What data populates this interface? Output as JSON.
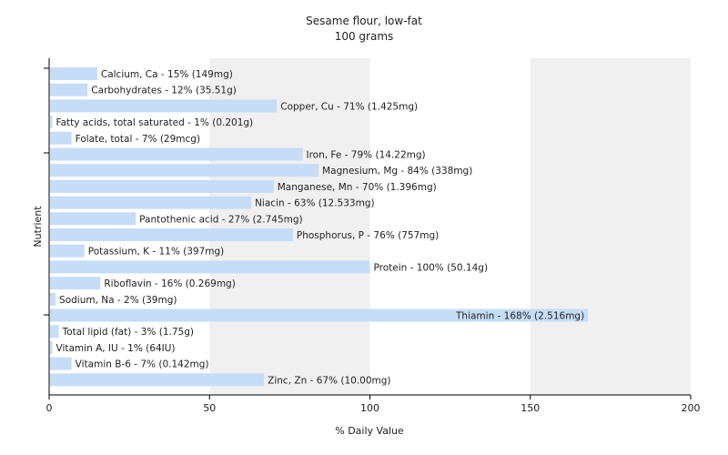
{
  "chart_data": {
    "type": "bar",
    "orientation": "horizontal",
    "title": "Sesame flour, low-fat",
    "subtitle": "100 grams",
    "xlabel": "% Daily Value",
    "ylabel": "Nutrient",
    "xlim": [
      0,
      200
    ],
    "xticks": [
      0,
      50,
      100,
      150,
      200
    ],
    "grid": "vertical-bands",
    "legend": "none",
    "bar_color": "#c6ddf7",
    "band_color": "#f0f0f0",
    "categories": [
      "Calcium, Ca",
      "Carbohydrates",
      "Copper, Cu",
      "Fatty acids, total saturated",
      "Folate, total",
      "Iron, Fe",
      "Magnesium, Mg",
      "Manganese, Mn",
      "Niacin",
      "Pantothenic acid",
      "Phosphorus, P",
      "Potassium, K",
      "Protein",
      "Riboflavin",
      "Sodium, Na",
      "Thiamin",
      "Total lipid (fat)",
      "Vitamin A, IU",
      "Vitamin B-6",
      "Zinc, Zn"
    ],
    "values": [
      15,
      12,
      71,
      1,
      7,
      79,
      84,
      70,
      63,
      27,
      76,
      11,
      100,
      16,
      2,
      168,
      3,
      1,
      7,
      67
    ],
    "labels": [
      "Calcium, Ca - 15% (149mg)",
      "Carbohydrates - 12% (35.51g)",
      "Copper, Cu - 71% (1.425mg)",
      "Fatty acids, total saturated - 1% (0.201g)",
      "Folate, total - 7% (29mcg)",
      "Iron, Fe - 79% (14.22mg)",
      "Magnesium, Mg - 84% (338mg)",
      "Manganese, Mn - 70% (1.396mg)",
      "Niacin - 63% (12.533mg)",
      "Pantothenic acid - 27% (2.745mg)",
      "Phosphorus, P - 76% (757mg)",
      "Potassium, K - 11% (397mg)",
      "Protein - 100% (50.14g)",
      "Riboflavin - 16% (0.269mg)",
      "Sodium, Na - 2% (39mg)",
      "Thiamin - 168% (2.516mg)",
      "Total lipid (fat) - 3% (1.75g)",
      "Vitamin A, IU - 1% (64IU)",
      "Vitamin B-6 - 7% (0.142mg)",
      "Zinc, Zn - 67% (10.00mg)"
    ]
  }
}
